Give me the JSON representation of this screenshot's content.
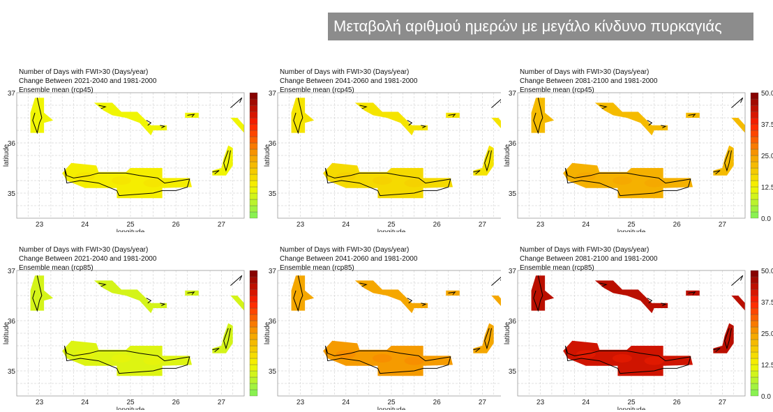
{
  "header": {
    "title": "Μεταβολή αριθμού ημερών με μεγάλο κίνδυνο πυρκαγιάς"
  },
  "chart_data": {
    "type": "heatmap",
    "xlabel": "longitude",
    "ylabel": "latitude",
    "xlim": [
      22.5,
      27.5
    ],
    "ylim": [
      34.5,
      37
    ],
    "xticks": [
      23,
      24,
      25,
      26,
      27
    ],
    "yticks": [
      35,
      36,
      37
    ],
    "colorbar": {
      "range": [
        0,
        50
      ],
      "ticks": [
        "0.0",
        "12.5",
        "25.0",
        "37.5",
        "50.0"
      ],
      "colors": [
        "#7ef05a",
        "#f5f500",
        "#f5a000",
        "#ff2000",
        "#7a0000"
      ]
    },
    "panels": [
      {
        "line1": "Number of Days with FWI>30 (Days/year)",
        "line2": "Change Between 2021-2040 and 1981-2000",
        "line3": "Ensemble mean (rcp45)",
        "mean_change": 12,
        "crete_peak": 15
      },
      {
        "line1": "Number of Days with FWI>30 (Days/year)",
        "line2": "Change Between 2041-2060 and 1981-2000",
        "line3": "Ensemble mean (rcp45)",
        "mean_change": 15,
        "crete_peak": 18
      },
      {
        "line1": "Number of Days with FWI>30 (Days/year)",
        "line2": "Change Between 2081-2100 and 1981-2000",
        "line3": "Ensemble mean (rcp45)",
        "mean_change": 21,
        "crete_peak": 24
      },
      {
        "line1": "Number of Days with FWI>30 (Days/year)",
        "line2": "Change Between 2021-2040 and 1981-2000",
        "line3": "Ensemble mean (rcp85)",
        "mean_change": 9,
        "crete_peak": 11
      },
      {
        "line1": "Number of Days with FWI>30 (Days/year)",
        "line2": "Change Between 2041-2060 and 1981-2000",
        "line3": "Ensemble mean (rcp85)",
        "mean_change": 24,
        "crete_peak": 27
      },
      {
        "line1": "Number of Days with FWI>30 (Days/year)",
        "line2": "Change Between 2081-2100 and 1981-2000",
        "line3": "Ensemble mean (rcp85)",
        "mean_change": 44,
        "crete_peak": 40
      }
    ],
    "regions": [
      {
        "name": "crete",
        "poly": [
          [
            23.5,
            35.4
          ],
          [
            23.7,
            35.6
          ],
          [
            24.25,
            35.55
          ],
          [
            24.3,
            35.42
          ],
          [
            24.9,
            35.42
          ],
          [
            25,
            35.5
          ],
          [
            25.7,
            35.5
          ],
          [
            25.7,
            35.3
          ],
          [
            26.3,
            35.3
          ],
          [
            26.35,
            35.12
          ],
          [
            25.7,
            35.1
          ],
          [
            25.7,
            34.9
          ],
          [
            24.7,
            34.9
          ],
          [
            24.7,
            35.1
          ],
          [
            24,
            35.1
          ],
          [
            23.6,
            35.25
          ]
        ]
      },
      {
        "name": "peloponnese-kythira",
        "poly": [
          [
            22.9,
            36.9
          ],
          [
            23.1,
            36.9
          ],
          [
            23.1,
            36.6
          ],
          [
            23.3,
            36.45
          ],
          [
            23.1,
            36.4
          ],
          [
            23.1,
            36.2
          ],
          [
            22.8,
            36.2
          ],
          [
            22.8,
            36.6
          ]
        ]
      },
      {
        "name": "cyclades",
        "poly": [
          [
            24.2,
            36.8
          ],
          [
            24.6,
            36.8
          ],
          [
            24.8,
            36.62
          ],
          [
            25.15,
            36.62
          ],
          [
            25.45,
            36.35
          ],
          [
            25.8,
            36.35
          ],
          [
            25.8,
            36.25
          ],
          [
            25.5,
            36.25
          ],
          [
            25.45,
            36.15
          ],
          [
            25.2,
            36.4
          ],
          [
            24.9,
            36.5
          ],
          [
            24.6,
            36.55
          ],
          [
            24.4,
            36.65
          ]
        ]
      },
      {
        "name": "astypalaia",
        "poly": [
          [
            26.2,
            36.6
          ],
          [
            26.5,
            36.6
          ],
          [
            26.5,
            36.5
          ],
          [
            26.2,
            36.5
          ]
        ]
      },
      {
        "name": "kos",
        "poly": [
          [
            27.2,
            36.5
          ],
          [
            27.35,
            36.5
          ],
          [
            27.5,
            36.35
          ],
          [
            27.5,
            36.2
          ]
        ]
      },
      {
        "name": "karpathos",
        "poly": [
          [
            27.15,
            35.95
          ],
          [
            27.25,
            35.9
          ],
          [
            27.25,
            35.55
          ],
          [
            27.1,
            35.35
          ],
          [
            26.8,
            35.35
          ],
          [
            26.8,
            35.45
          ],
          [
            27.0,
            35.5
          ],
          [
            27.05,
            35.7
          ]
        ]
      }
    ],
    "coastlines": [
      [
        [
          23.55,
          35.5
        ],
        [
          23.6,
          35.35
        ],
        [
          23.75,
          35.3
        ],
        [
          24.1,
          35.35
        ],
        [
          24.3,
          35.4
        ],
        [
          24.9,
          35.4
        ],
        [
          25.2,
          35.35
        ],
        [
          25.6,
          35.3
        ],
        [
          25.75,
          35.2
        ],
        [
          26.1,
          35.25
        ],
        [
          26.3,
          35.28
        ],
        [
          26.25,
          35.12
        ],
        [
          26.0,
          35.05
        ],
        [
          25.7,
          35.05
        ],
        [
          25.5,
          35.0
        ],
        [
          24.75,
          34.95
        ],
        [
          24.7,
          35.05
        ],
        [
          24.3,
          35.2
        ],
        [
          23.9,
          35.25
        ],
        [
          23.6,
          35.2
        ],
        [
          23.55,
          35.5
        ]
      ],
      [
        [
          22.95,
          36.9
        ],
        [
          23.0,
          36.7
        ],
        [
          23.05,
          36.5
        ],
        [
          23.0,
          36.4
        ],
        [
          22.95,
          36.2
        ],
        [
          22.85,
          36.45
        ],
        [
          22.9,
          36.6
        ]
      ],
      [
        [
          27.2,
          35.85
        ],
        [
          27.15,
          35.6
        ],
        [
          27.1,
          35.45
        ],
        [
          27.05,
          35.6
        ],
        [
          27.15,
          35.85
        ]
      ],
      [
        [
          26.8,
          35.42
        ],
        [
          26.95,
          35.45
        ],
        [
          26.85,
          35.38
        ]
      ],
      [
        [
          24.3,
          36.75
        ],
        [
          24.45,
          36.72
        ],
        [
          24.35,
          36.68
        ]
      ],
      [
        [
          25.35,
          36.45
        ],
        [
          25.45,
          36.4
        ],
        [
          25.38,
          36.35
        ]
      ],
      [
        [
          25.65,
          36.35
        ],
        [
          25.75,
          36.33
        ],
        [
          25.68,
          36.3
        ]
      ],
      [
        [
          26.25,
          36.55
        ],
        [
          26.4,
          36.57
        ],
        [
          26.35,
          36.52
        ]
      ],
      [
        [
          27.2,
          36.7
        ],
        [
          27.45,
          36.9
        ],
        [
          27.4,
          36.8
        ]
      ]
    ]
  }
}
